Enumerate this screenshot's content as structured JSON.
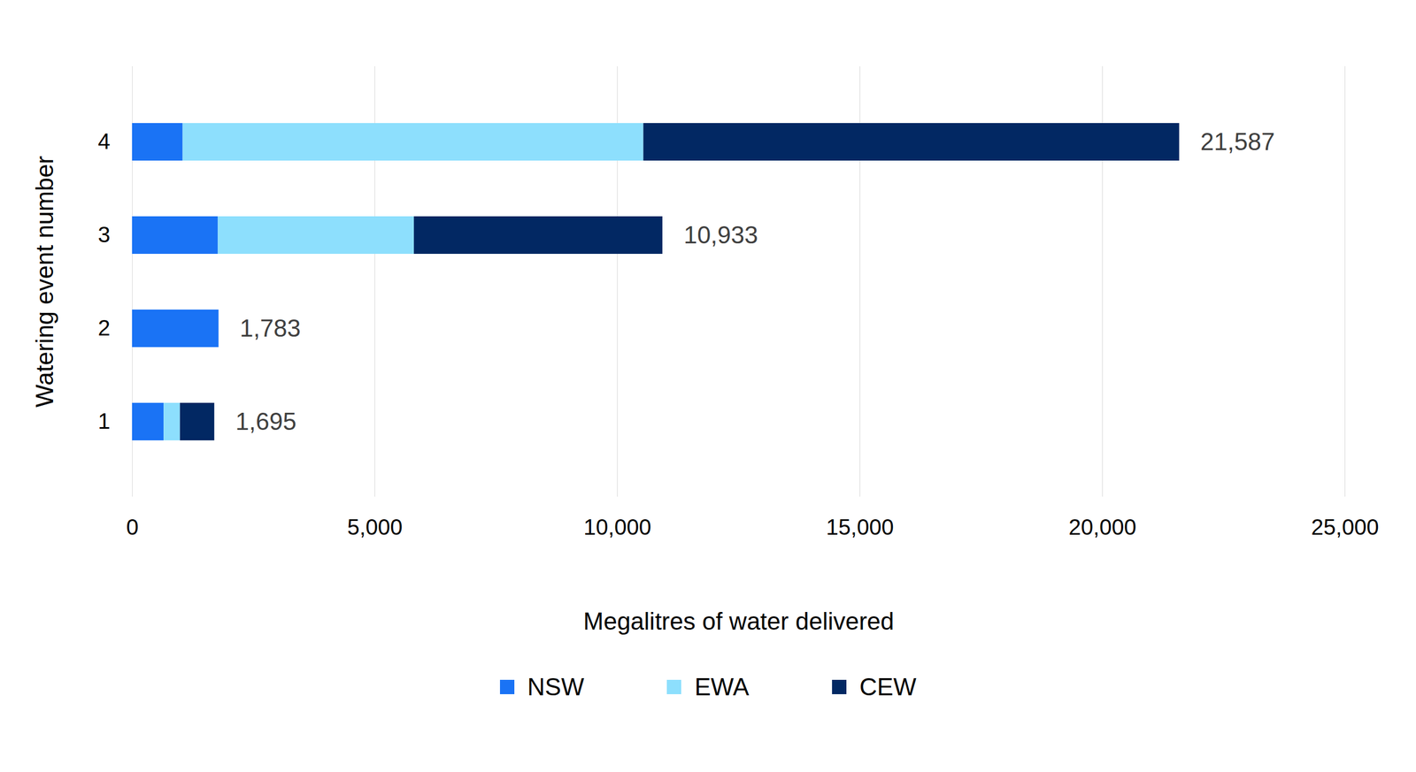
{
  "chart_data": {
    "type": "bar",
    "orientation": "horizontal",
    "stacked": true,
    "categories": [
      "1",
      "2",
      "3",
      "4"
    ],
    "series": [
      {
        "name": "NSW",
        "color": "#1a73f5",
        "values": [
          652,
          1783,
          1769,
          1043
        ]
      },
      {
        "name": "EWA",
        "color": "#8ddffd",
        "values": [
          335,
          0,
          4041,
          9497
        ]
      },
      {
        "name": "CEW",
        "color": "#022863",
        "values": [
          708,
          0,
          5123,
          11047
        ]
      }
    ],
    "totals": [
      1695,
      1783,
      10933,
      21587
    ],
    "total_labels": [
      "1,695",
      "1,783",
      "10,933",
      "21,587"
    ],
    "xlabel": "Megalitres of water delivered",
    "ylabel": "Watering event number",
    "xlim": [
      0,
      25000
    ],
    "xticks": [
      0,
      {
        "value": 5000,
        "label": "5,000"
      },
      {
        "value": 10000,
        "label": "10,000"
      },
      {
        "value": 15000,
        "label": "15,000"
      },
      {
        "value": 20000,
        "label": "20,000"
      },
      {
        "value": 25000,
        "label": "25,000"
      }
    ],
    "grid": true,
    "legend": "bottom"
  }
}
